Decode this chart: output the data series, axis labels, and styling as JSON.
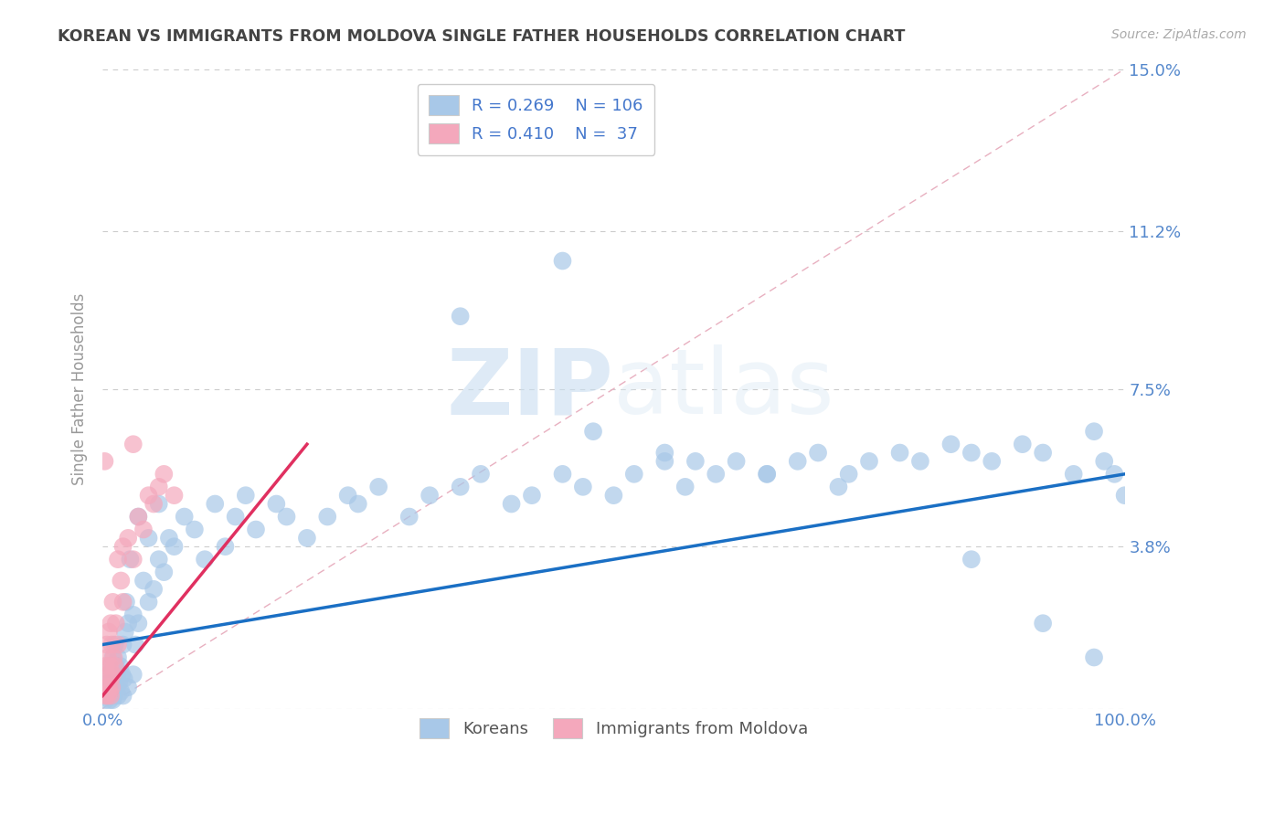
{
  "title": "KOREAN VS IMMIGRANTS FROM MOLDOVA SINGLE FATHER HOUSEHOLDS CORRELATION CHART",
  "source": "Source: ZipAtlas.com",
  "ylabel": "Single Father Households",
  "xlim": [
    0,
    100
  ],
  "ylim": [
    0,
    15.0
  ],
  "yticks": [
    0,
    3.8,
    7.5,
    11.2,
    15.0
  ],
  "xticks": [
    0,
    100
  ],
  "xtick_labels": [
    "0.0%",
    "100.0%"
  ],
  "ytick_labels": [
    "",
    "3.8%",
    "7.5%",
    "11.2%",
    "15.0%"
  ],
  "legend_korean_R": "0.269",
  "legend_korean_N": "106",
  "legend_moldova_R": "0.410",
  "legend_moldova_N": " 37",
  "korean_color": "#a8c8e8",
  "moldova_color": "#f4a8bc",
  "korean_line_color": "#1a6fc4",
  "moldova_line_color": "#e03060",
  "legend_text_color": "#4477cc",
  "title_color": "#444444",
  "axis_label_color": "#5588cc",
  "grid_color": "#cccccc",
  "ref_line_color": "#e8b0c0",
  "watermark_color": "#dde8f0",
  "background_color": "#ffffff",
  "korean_trend_x": [
    0,
    100
  ],
  "korean_trend_y": [
    1.5,
    5.5
  ],
  "moldova_trend_x": [
    0,
    20
  ],
  "moldova_trend_y": [
    0.3,
    6.2
  ],
  "ref_line_x": [
    0,
    100
  ],
  "ref_line_y": [
    0,
    15.0
  ],
  "korean_x": [
    0.3,
    0.4,
    0.5,
    0.5,
    0.6,
    0.6,
    0.7,
    0.7,
    0.8,
    0.8,
    0.9,
    0.9,
    1.0,
    1.0,
    1.0,
    1.1,
    1.1,
    1.2,
    1.2,
    1.3,
    1.3,
    1.4,
    1.5,
    1.5,
    1.6,
    1.7,
    1.8,
    1.9,
    2.0,
    2.0,
    2.1,
    2.2,
    2.3,
    2.5,
    2.5,
    2.7,
    3.0,
    3.0,
    3.2,
    3.5,
    3.5,
    4.0,
    4.5,
    4.5,
    5.0,
    5.5,
    5.5,
    6.0,
    6.5,
    7.0,
    8.0,
    9.0,
    10.0,
    11.0,
    12.0,
    13.0,
    14.0,
    15.0,
    17.0,
    18.0,
    20.0,
    22.0,
    24.0,
    25.0,
    27.0,
    30.0,
    32.0,
    35.0,
    37.0,
    40.0,
    42.0,
    45.0,
    47.0,
    50.0,
    52.0,
    55.0,
    57.0,
    60.0,
    62.0,
    65.0,
    68.0,
    70.0,
    73.0,
    75.0,
    78.0,
    80.0,
    83.0,
    85.0,
    87.0,
    90.0,
    92.0,
    95.0,
    97.0,
    98.0,
    99.0,
    100.0,
    45.0,
    35.0,
    55.0,
    65.0,
    72.0,
    85.0,
    92.0,
    97.0,
    48.0,
    58.0
  ],
  "korean_y": [
    0.2,
    0.3,
    0.4,
    0.5,
    0.3,
    0.8,
    0.2,
    0.5,
    0.4,
    1.0,
    0.3,
    0.7,
    0.2,
    0.5,
    1.2,
    0.3,
    0.8,
    0.4,
    1.5,
    0.5,
    1.0,
    0.8,
    0.3,
    1.2,
    0.6,
    1.0,
    0.4,
    0.8,
    0.3,
    1.5,
    0.7,
    1.8,
    2.5,
    0.5,
    2.0,
    3.5,
    0.8,
    2.2,
    1.5,
    2.0,
    4.5,
    3.0,
    2.5,
    4.0,
    2.8,
    3.5,
    4.8,
    3.2,
    4.0,
    3.8,
    4.5,
    4.2,
    3.5,
    4.8,
    3.8,
    4.5,
    5.0,
    4.2,
    4.8,
    4.5,
    4.0,
    4.5,
    5.0,
    4.8,
    5.2,
    4.5,
    5.0,
    5.2,
    5.5,
    4.8,
    5.0,
    5.5,
    5.2,
    5.0,
    5.5,
    5.8,
    5.2,
    5.5,
    5.8,
    5.5,
    5.8,
    6.0,
    5.5,
    5.8,
    6.0,
    5.8,
    6.2,
    6.0,
    5.8,
    6.2,
    6.0,
    5.5,
    6.5,
    5.8,
    5.5,
    5.0,
    10.5,
    9.2,
    6.0,
    5.5,
    5.2,
    3.5,
    2.0,
    1.2,
    6.5,
    5.8
  ],
  "moldova_x": [
    0.2,
    0.3,
    0.3,
    0.4,
    0.4,
    0.5,
    0.5,
    0.5,
    0.6,
    0.6,
    0.7,
    0.7,
    0.8,
    0.8,
    0.8,
    0.9,
    0.9,
    1.0,
    1.0,
    1.1,
    1.2,
    1.3,
    1.5,
    1.5,
    1.8,
    2.0,
    2.0,
    2.5,
    3.0,
    3.5,
    4.0,
    4.5,
    5.0,
    5.5,
    6.0,
    7.0,
    3.0
  ],
  "moldova_y": [
    5.8,
    0.3,
    1.0,
    0.5,
    1.5,
    0.3,
    0.8,
    1.2,
    0.5,
    1.8,
    0.4,
    1.0,
    0.3,
    0.7,
    2.0,
    0.5,
    1.5,
    0.8,
    2.5,
    1.2,
    1.0,
    2.0,
    1.5,
    3.5,
    3.0,
    2.5,
    3.8,
    4.0,
    3.5,
    4.5,
    4.2,
    5.0,
    4.8,
    5.2,
    5.5,
    5.0,
    6.2
  ]
}
